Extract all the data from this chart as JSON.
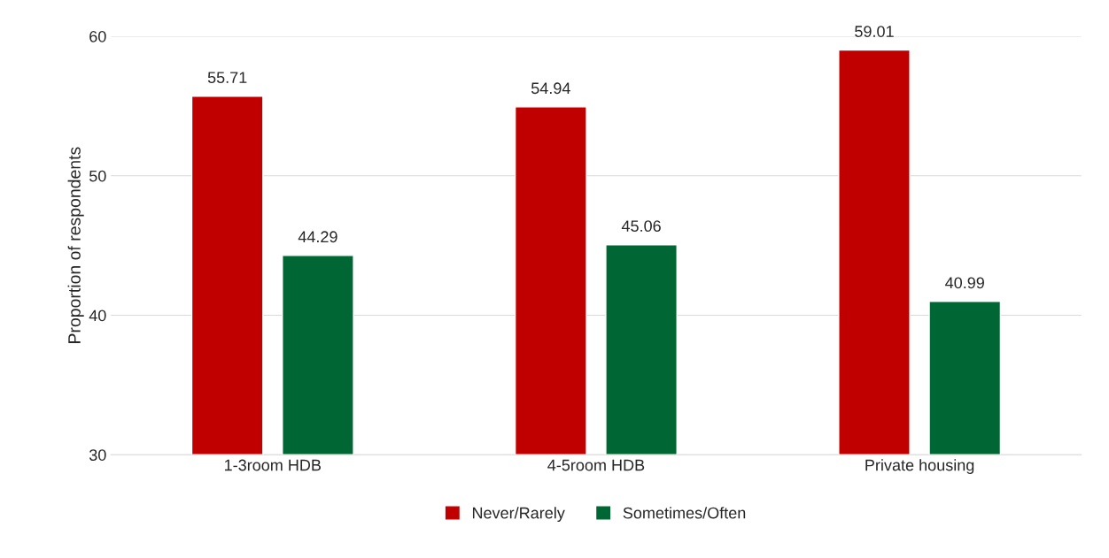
{
  "chart_data": {
    "type": "bar",
    "ylabel": "Proportion of respondents",
    "categories": [
      "1-3room HDB",
      "4-5room HDB",
      "Private housing"
    ],
    "series": [
      {
        "name": "Never/Rarely",
        "color": "#c00000",
        "values": [
          55.71,
          54.94,
          59.01
        ]
      },
      {
        "name": "Sometimes/Often",
        "color": "#006633",
        "values": [
          44.29,
          45.06,
          40.99
        ]
      }
    ],
    "ylim": [
      30,
      60
    ],
    "yticks": [
      30,
      40,
      50,
      60
    ],
    "grid": "y",
    "legend": "bottom",
    "data_labels": true
  }
}
